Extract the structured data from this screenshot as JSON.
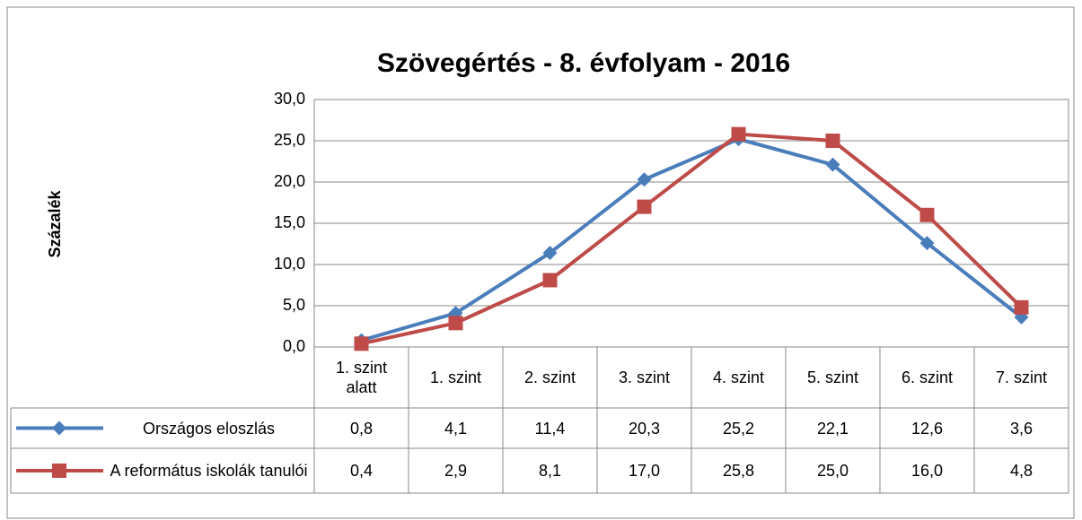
{
  "chart_data": {
    "type": "line",
    "title": "Szövegértés - 8. évfolyam - 2016",
    "y_label": "Százalék",
    "categories": [
      "1. szint alatt",
      "1. szint",
      "2. szint",
      "3. szint",
      "4. szint",
      "5. szint",
      "6. szint",
      "7. szint"
    ],
    "series": [
      {
        "name": "Országos eloszlás",
        "color": "#4a7ebb",
        "marker": "diamond",
        "values": [
          0.8,
          4.1,
          11.4,
          20.3,
          25.2,
          22.1,
          12.6,
          3.6
        ],
        "value_labels": [
          "0,8",
          "4,1",
          "11,4",
          "20,3",
          "25,2",
          "22,1",
          "12,6",
          "3,6"
        ]
      },
      {
        "name": "A református iskolák tanulói",
        "color": "#be4b48",
        "marker": "square",
        "values": [
          0.4,
          2.9,
          8.1,
          17.0,
          25.8,
          25.0,
          16.0,
          4.8
        ],
        "value_labels": [
          "0,4",
          "2,9",
          "8,1",
          "17,0",
          "25,8",
          "25,0",
          "16,0",
          "4,8"
        ]
      }
    ],
    "ylim": [
      0,
      30
    ],
    "yticks": [
      {
        "value": 0,
        "label": "0,0"
      },
      {
        "value": 5,
        "label": "5,0"
      },
      {
        "value": 10,
        "label": "10,0"
      },
      {
        "value": 15,
        "label": "15,0"
      },
      {
        "value": 20,
        "label": "20,0"
      },
      {
        "value": 25,
        "label": "25,0"
      },
      {
        "value": 30,
        "label": "30,0"
      }
    ],
    "grid": true,
    "data_table": true
  }
}
